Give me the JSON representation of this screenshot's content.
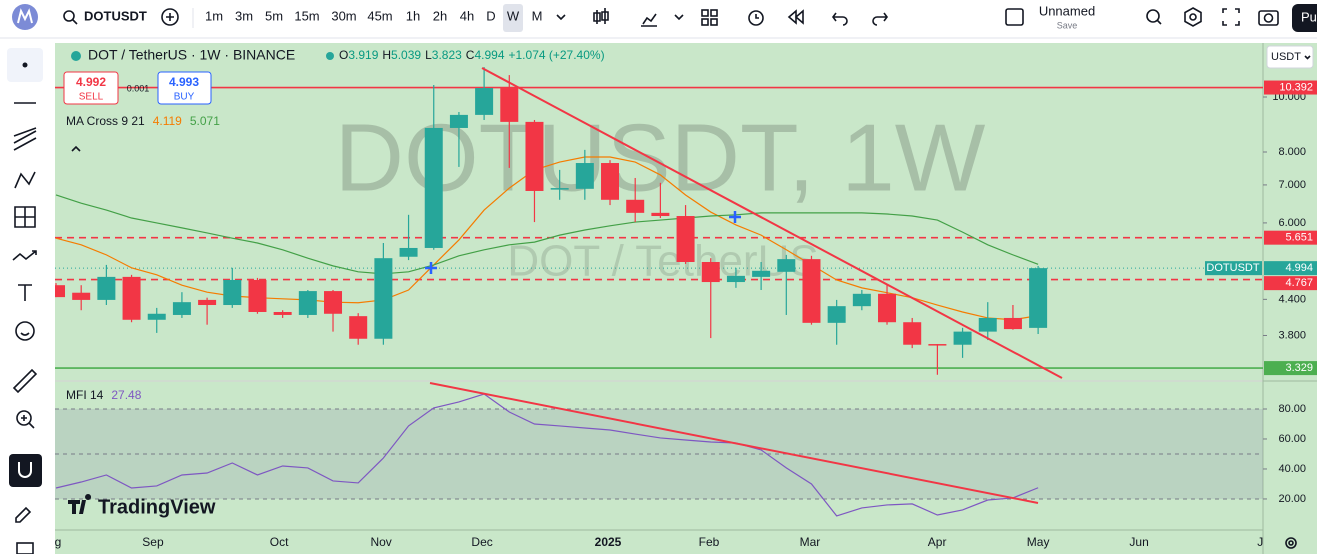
{
  "toolbar": {
    "symbol": "DOTUSDT",
    "intervals": [
      "1m",
      "3m",
      "5m",
      "15m",
      "30m",
      "45m",
      "1h",
      "2h",
      "4h",
      "D",
      "W",
      "M"
    ],
    "layout_name": "Unnamed",
    "save": "Save",
    "publish": "Pu"
  },
  "branding": "TradingView",
  "chart_data": {
    "type": "candlestick",
    "title": "DOT / TetherUS · 1W · BINANCE",
    "watermark": "DOTUSDT, 1W",
    "watermark_sub": "DOT / TetherUS",
    "currency": "USDT",
    "symbol_label": "DOTUSDT",
    "ohlc_labels": [
      "O",
      "H",
      "L",
      "C"
    ],
    "change": "+1.074 (+27.40%)",
    "trade": {
      "sell": 4.992,
      "sell_label": "SELL",
      "buy": 4.993,
      "buy_label": "BUY",
      "spread": 0.001
    },
    "up_color": "#26a69a",
    "down_color": "#f23645",
    "log_scale": true,
    "grid": false,
    "open": [
      4.66,
      4.52,
      4.39,
      4.82,
      4.05,
      4.13,
      4.39,
      4.3,
      4.76,
      4.18,
      4.13,
      4.55,
      4.11,
      3.75,
      5.23,
      5.42,
      8.82,
      9.3,
      10.37,
      9.04,
      6.89,
      6.89,
      7.65,
      6.59,
      6.25,
      6.17,
      5.12,
      4.72,
      4.82,
      4.92,
      5.18,
      4.0,
      4.28,
      4.5,
      4.01,
      3.67,
      3.66,
      3.86,
      4.08,
      3.919
    ],
    "high": [
      4.7,
      4.66,
      5.06,
      4.86,
      4.25,
      4.53,
      4.43,
      5.0,
      4.8,
      4.21,
      4.57,
      4.57,
      4.16,
      5.53,
      6.2,
      10.5,
      9.41,
      11.29,
      10.93,
      9.11,
      7.44,
      8.07,
      7.74,
      7.2,
      7.06,
      6.45,
      5.2,
      5.0,
      5.12,
      5.27,
      5.25,
      4.39,
      4.57,
      4.66,
      4.08,
      3.67,
      3.92,
      4.35,
      4.3,
      5.039
    ],
    "low": [
      4.44,
      4.21,
      4.3,
      4.01,
      3.84,
      4.08,
      3.97,
      4.25,
      4.15,
      4.08,
      4.08,
      3.86,
      3.66,
      3.66,
      5.16,
      5.38,
      7.53,
      9.11,
      7.5,
      6.02,
      6.59,
      6.59,
      6.45,
      6.02,
      6.12,
      5.08,
      3.76,
      4.61,
      4.57,
      4.13,
      3.97,
      3.66,
      4.21,
      3.97,
      3.61,
      3.24,
      3.47,
      3.73,
      3.89,
      3.823
    ],
    "close": [
      4.44,
      4.39,
      4.82,
      4.05,
      4.15,
      4.35,
      4.3,
      4.76,
      4.18,
      4.13,
      4.55,
      4.15,
      3.75,
      5.2,
      5.42,
      8.82,
      9.3,
      10.37,
      9.04,
      6.83,
      6.91,
      7.65,
      6.59,
      6.25,
      6.17,
      5.12,
      4.72,
      4.84,
      4.94,
      5.18,
      4.0,
      4.28,
      4.5,
      4.01,
      3.66,
      3.66,
      3.86,
      4.08,
      3.9,
      4.994
    ],
    "ylim": [
      3.172,
      12.45
    ],
    "yticks": [
      {
        "value": 10,
        "label": "10.000"
      },
      {
        "value": 8,
        "label": "8.000"
      },
      {
        "value": 7,
        "label": "7.000"
      },
      {
        "value": 6,
        "label": "6.000"
      },
      {
        "value": 4.4,
        "label": "4.400"
      },
      {
        "value": 3.8,
        "label": "3.800"
      }
    ],
    "xlim": [
      -0.04,
      47.93
    ],
    "xticks": [
      {
        "value": 0.08,
        "label": "g"
      },
      {
        "value": 3.85,
        "label": "Sep"
      },
      {
        "value": 8.86,
        "label": "Oct"
      },
      {
        "value": 12.91,
        "label": "Nov"
      },
      {
        "value": 16.92,
        "label": "Dec"
      },
      {
        "value": 21.92,
        "label": "2025"
      },
      {
        "value": 25.93,
        "label": "Feb"
      },
      {
        "value": 29.94,
        "label": "Mar"
      },
      {
        "value": 34.99,
        "label": "Apr"
      },
      {
        "value": 39.0,
        "label": "May"
      },
      {
        "value": 43.01,
        "label": "Jun"
      },
      {
        "value": 47.82,
        "label": "J"
      }
    ],
    "hlines": [
      {
        "value": 10.392,
        "color": "#f23645",
        "style": "solid"
      },
      {
        "value": 5.651,
        "color": "#f23645",
        "style": "dashed"
      },
      {
        "value": 4.767,
        "color": "#f23645",
        "style": "dashed"
      },
      {
        "value": 3.329,
        "color": "#4caf50",
        "style": "solid"
      }
    ],
    "ma": {
      "name": "MA Cross 9 21",
      "series": [
        {
          "color": "#f57c00",
          "values": [
            5.64,
            5.49,
            5.27,
            5.0,
            4.86,
            4.66,
            4.53,
            4.46,
            4.43,
            4.41,
            4.39,
            4.35,
            4.34,
            4.39,
            4.57,
            5.06,
            5.6,
            6.32,
            6.91,
            7.44,
            7.68,
            7.84,
            7.84,
            7.68,
            7.29,
            6.72,
            6.27,
            5.95,
            5.71,
            5.38,
            5.06,
            4.76,
            4.61,
            4.52,
            4.43,
            4.3,
            4.18,
            4.08,
            4.05,
            4.119
          ]
        },
        {
          "color": "#43a047",
          "values": [
            6.72,
            6.5,
            6.32,
            6.12,
            6.0,
            5.88,
            5.76,
            5.64,
            5.53,
            5.38,
            5.2,
            5.04,
            4.92,
            4.88,
            4.92,
            5.06,
            5.25,
            5.38,
            5.49,
            5.55,
            5.71,
            5.83,
            5.93,
            6.02,
            6.07,
            6.12,
            6.17,
            6.2,
            6.25,
            6.25,
            6.25,
            6.25,
            6.25,
            6.22,
            6.17,
            6.07,
            5.78,
            5.49,
            5.27,
            5.071
          ]
        }
      ]
    },
    "mfi": {
      "name": "MFI 14",
      "color": "#7e57c2",
      "values": [
        27.3,
        31.3,
        36,
        27.3,
        28.7,
        36,
        37.3,
        44,
        36,
        42,
        40.7,
        32,
        30.7,
        47.3,
        68.7,
        80.7,
        84.7,
        90,
        78,
        70,
        68.7,
        67.3,
        66,
        63.3,
        60.7,
        59.3,
        58,
        57.3,
        52.7,
        40.7,
        30,
        8.7,
        14,
        16,
        16.7,
        9.3,
        12.7,
        19.3,
        20.7,
        27.48
      ],
      "ylim": [
        -0.7,
        98
      ],
      "levels": [
        80,
        50,
        20
      ],
      "yticks": [
        {
          "value": 80,
          "label": "80.00"
        },
        {
          "value": 60,
          "label": "60.00"
        },
        {
          "value": 40,
          "label": "40.00"
        },
        {
          "value": 20,
          "label": "20.00"
        }
      ]
    }
  }
}
